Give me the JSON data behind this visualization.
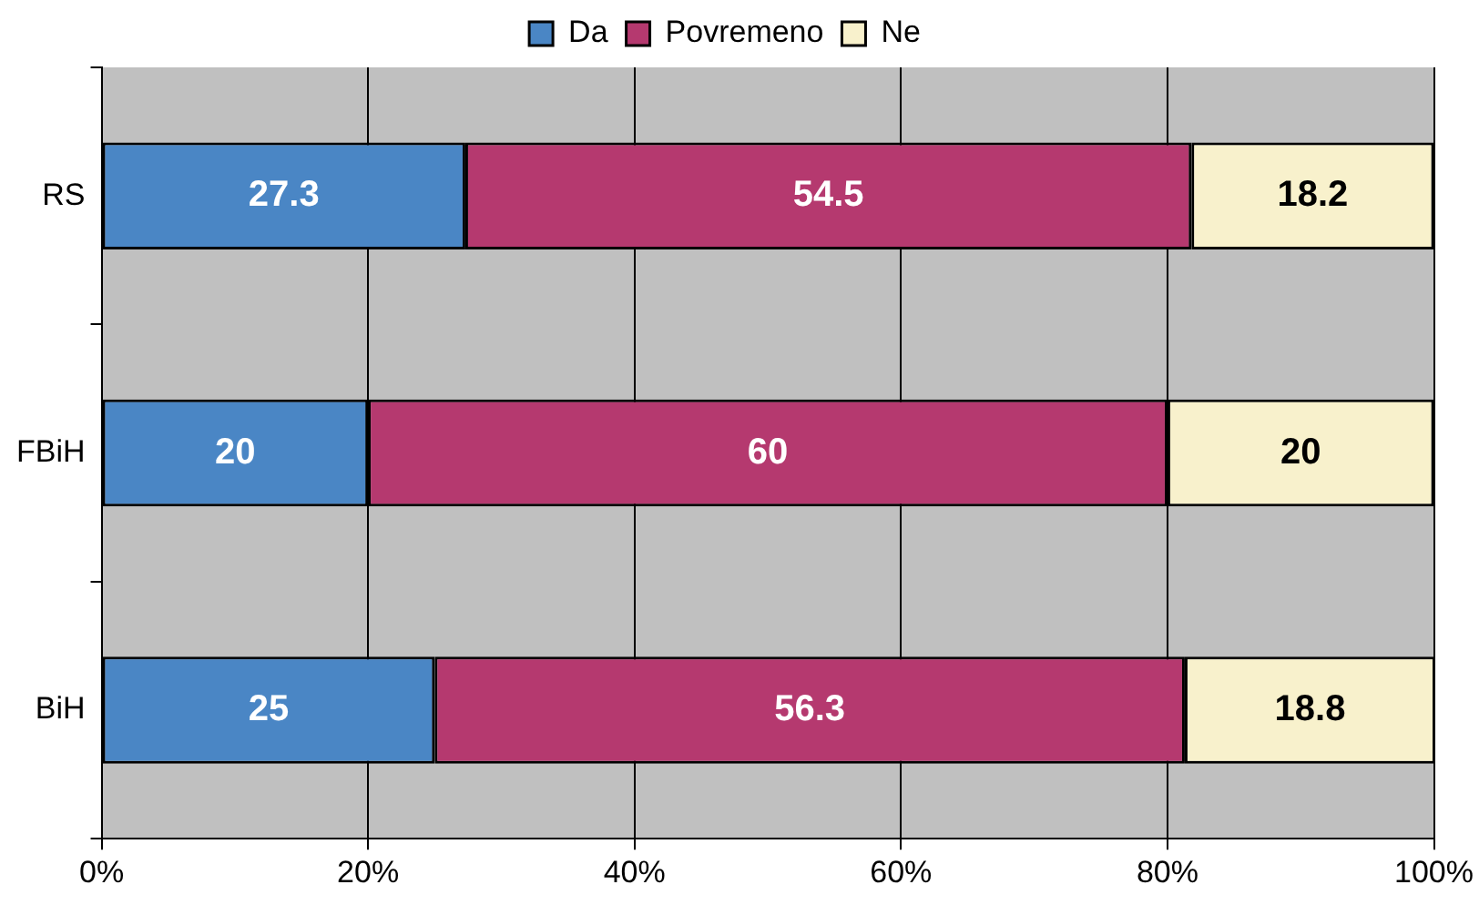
{
  "chart_data": {
    "type": "bar",
    "orientation": "horizontal",
    "stacked": true,
    "categories": [
      "RS",
      "FBiH",
      "BiH"
    ],
    "series": [
      {
        "name": "Da",
        "color": "#4a86c5",
        "values": [
          27.3,
          20,
          25
        ]
      },
      {
        "name": "Povremeno",
        "color": "#b5396f",
        "values": [
          54.5,
          60,
          56.3
        ]
      },
      {
        "name": "Ne",
        "color": "#f8f1cc",
        "values": [
          18.2,
          20,
          18.8
        ]
      }
    ],
    "xlim": [
      0,
      100
    ],
    "xticks": [
      {
        "value": 0,
        "label": "0%"
      },
      {
        "value": 20,
        "label": "20%"
      },
      {
        "value": 40,
        "label": "40%"
      },
      {
        "value": 60,
        "label": "60%"
      },
      {
        "value": 80,
        "label": "80%"
      },
      {
        "value": 100,
        "label": "100%"
      }
    ],
    "grid": "x",
    "legend": "top",
    "data_labels": true
  }
}
